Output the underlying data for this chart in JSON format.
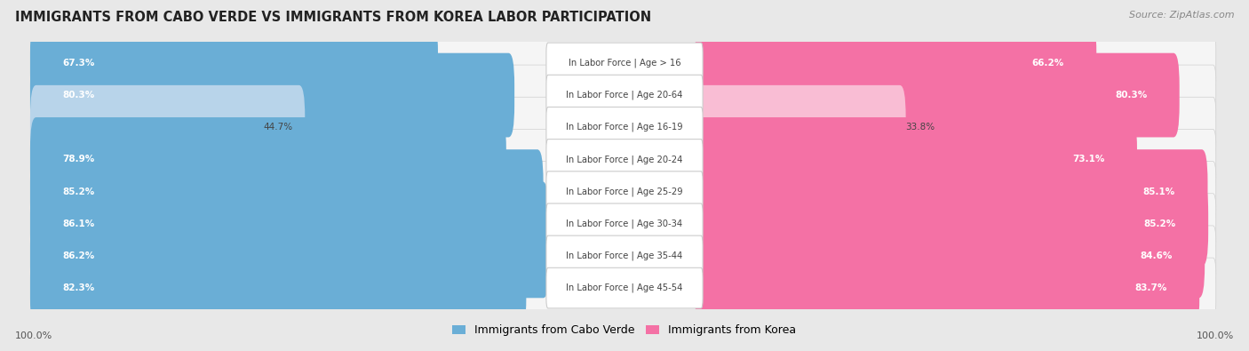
{
  "title": "IMMIGRANTS FROM CABO VERDE VS IMMIGRANTS FROM KOREA LABOR PARTICIPATION",
  "source": "Source: ZipAtlas.com",
  "categories": [
    "In Labor Force | Age > 16",
    "In Labor Force | Age 20-64",
    "In Labor Force | Age 16-19",
    "In Labor Force | Age 20-24",
    "In Labor Force | Age 25-29",
    "In Labor Force | Age 30-34",
    "In Labor Force | Age 35-44",
    "In Labor Force | Age 45-54"
  ],
  "cabo_verde_values": [
    67.3,
    80.3,
    44.7,
    78.9,
    85.2,
    86.1,
    86.2,
    82.3
  ],
  "korea_values": [
    66.2,
    80.3,
    33.8,
    73.1,
    85.1,
    85.2,
    84.6,
    83.7
  ],
  "cabo_verde_color": "#6aaed6",
  "cabo_verde_light_color": "#b8d4ea",
  "korea_color": "#f471a5",
  "korea_light_color": "#f9bdd4",
  "background_color": "#e8e8e8",
  "row_bg_color": "#f5f5f5",
  "row_shadow_color": "#d0d0d0",
  "legend_cabo_verde": "Immigrants from Cabo Verde",
  "legend_korea": "Immigrants from Korea",
  "max_value": 100.0
}
